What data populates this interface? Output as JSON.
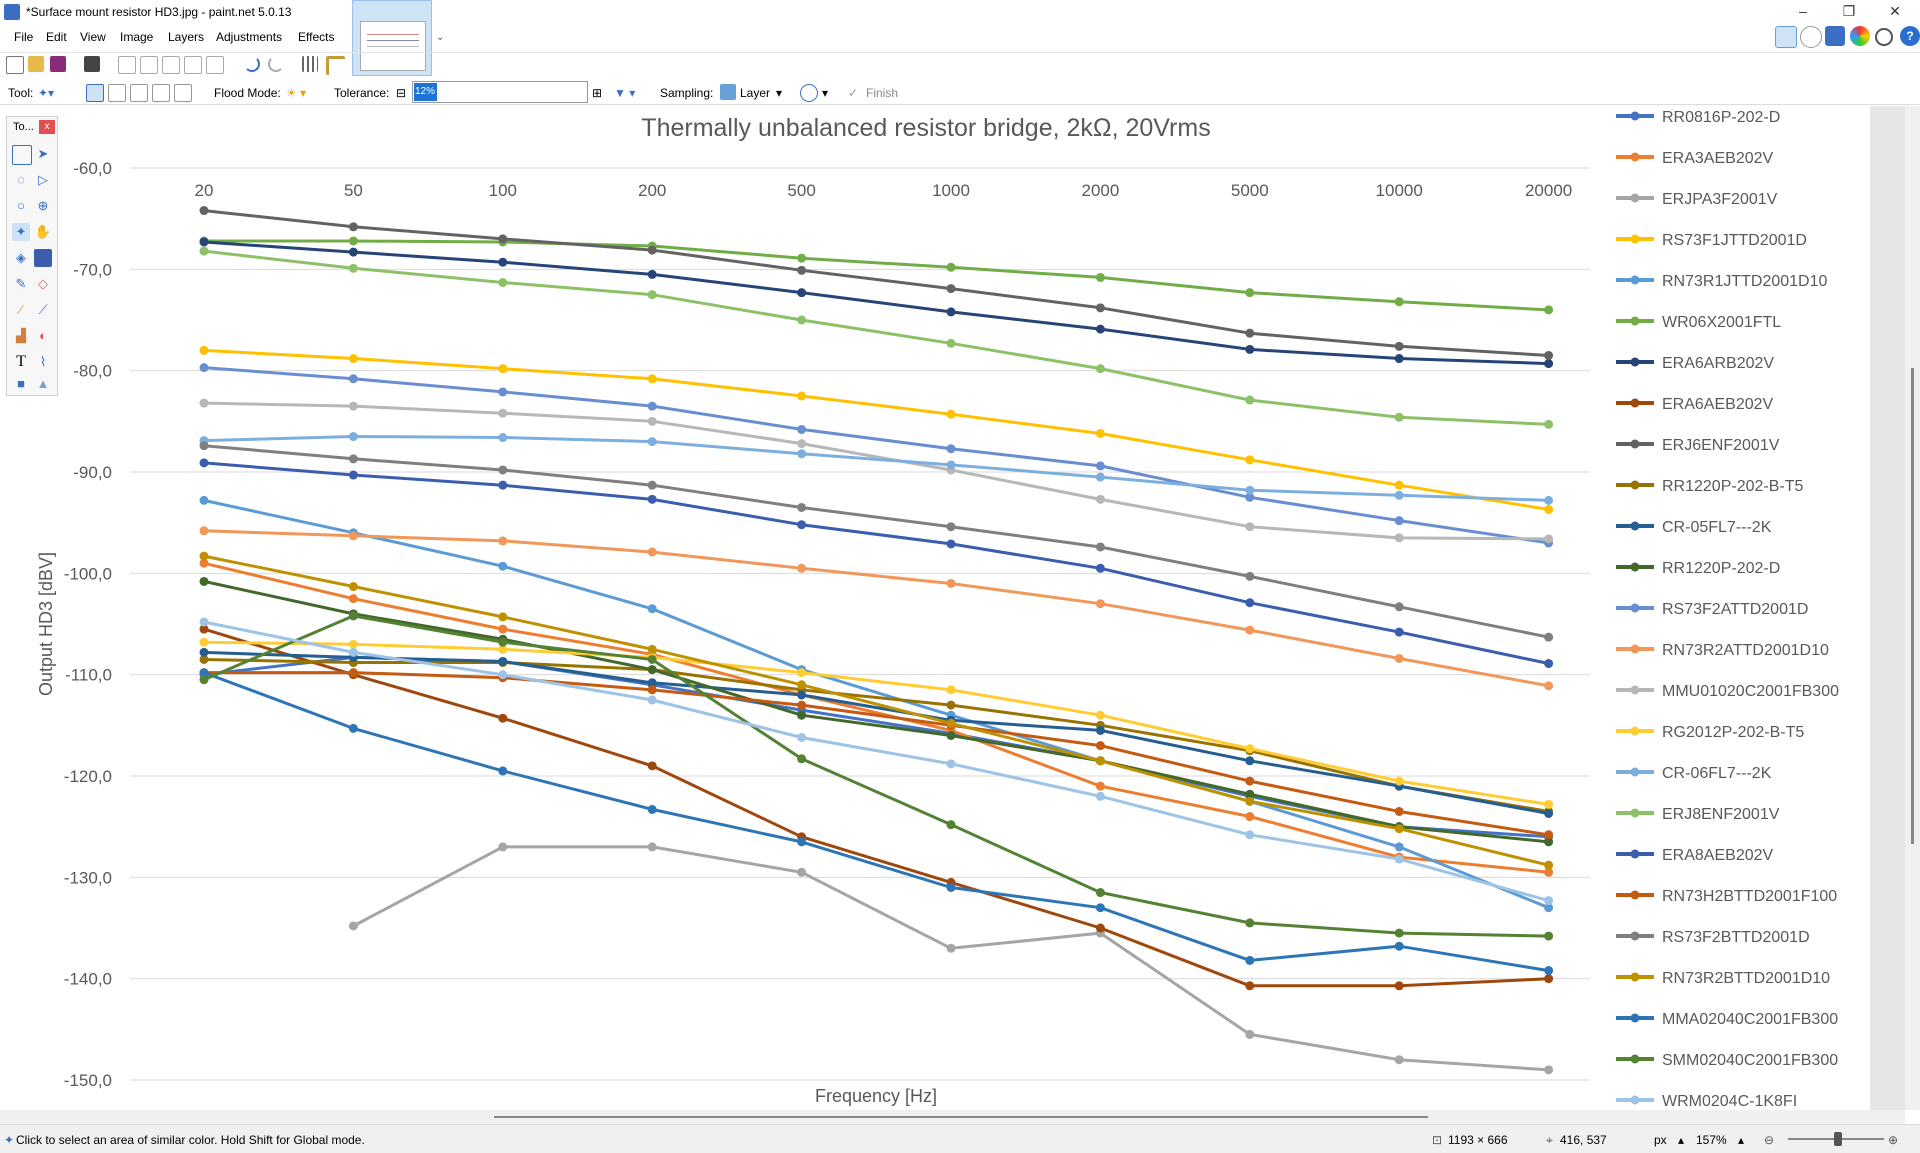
{
  "window": {
    "title": "*Surface mount resistor HD3.jpg - paint.net 5.0.13",
    "minimize": "–",
    "maximize": "❐",
    "close": "✕"
  },
  "menu": [
    "File",
    "Edit",
    "View",
    "Image",
    "Layers",
    "Adjustments",
    "Effects"
  ],
  "toolbar2": {
    "tool_label": "Tool:",
    "flood_label": "Flood Mode:",
    "tolerance_label": "Tolerance:",
    "tolerance_value": "12%",
    "tolerance_percent": 12,
    "sampling_label": "Sampling:",
    "sampling_value": "Layer",
    "finish_label": "Finish"
  },
  "tools_panel": {
    "title": "To...",
    "close": "x"
  },
  "status": {
    "hint": "Click to select an area of similar color. Hold Shift for Global mode.",
    "image_size": "1193 × 666",
    "cursor_pos": "416, 537",
    "unit": "px",
    "zoom": "157%"
  },
  "chart_data": {
    "type": "line",
    "title": "Thermally unbalanced resistor bridge, 2kΩ, 20Vrms",
    "xlabel": "Frequency [Hz]",
    "ylabel": "Output HD3 [dBV]",
    "categories": [
      "20",
      "50",
      "100",
      "200",
      "500",
      "1000",
      "2000",
      "5000",
      "10000",
      "20000"
    ],
    "ylim": [
      -150,
      -60
    ],
    "yticks": [
      "-60,0",
      "-70,0",
      "-80,0",
      "-90,0",
      "-100,0",
      "-110,0",
      "-120,0",
      "-130,0",
      "-140,0",
      "-150,0"
    ],
    "grid": true,
    "legend_position": "right",
    "series": [
      {
        "name": "RR0816P-202-D",
        "color": "#4472c4",
        "values": [
          -110.0,
          -108.3,
          -108.7,
          -111.0,
          -113.5,
          -115.8,
          -118.5,
          -122.0,
          -125.0,
          -126.0
        ]
      },
      {
        "name": "ERA3AEB202V",
        "color": "#ed7d31",
        "values": [
          -99.0,
          -102.5,
          -105.5,
          -108.0,
          -112.0,
          -115.5,
          -121.0,
          -124.0,
          -128.0,
          -129.5
        ]
      },
      {
        "name": "ERJPA3F2001V",
        "color": "#a5a5a5",
        "values": [
          null,
          -134.8,
          -127.0,
          -127.0,
          -129.5,
          -137.0,
          -135.5,
          -145.5,
          -148.0,
          -149.0
        ]
      },
      {
        "name": "RS73F1JTTD2001D",
        "color": "#ffc000",
        "values": [
          -78.0,
          -78.8,
          -79.8,
          -80.8,
          -82.5,
          -84.3,
          -86.2,
          -88.8,
          -91.3,
          -93.7
        ]
      },
      {
        "name": "RN73R1JTTD2001D10",
        "color": "#5b9bd5",
        "values": [
          -92.8,
          -96.0,
          -99.3,
          -103.5,
          -109.5,
          -114.0,
          -118.5,
          -122.5,
          -127.0,
          -133.0
        ]
      },
      {
        "name": "WR06X2001FTL",
        "color": "#70ad47",
        "values": [
          -67.2,
          -67.2,
          -67.3,
          -67.7,
          -68.9,
          -69.8,
          -70.8,
          -72.3,
          -73.2,
          -74.0
        ]
      },
      {
        "name": "ERA6ARB202V",
        "color": "#264478",
        "values": [
          -67.3,
          -68.3,
          -69.3,
          -70.5,
          -72.3,
          -74.2,
          -75.9,
          -77.9,
          -78.8,
          -79.3
        ]
      },
      {
        "name": "ERA6AEB202V",
        "color": "#9e480e",
        "values": [
          -105.5,
          -110.0,
          -114.3,
          -119.0,
          -126.0,
          -130.5,
          -135.0,
          -140.7,
          -140.7,
          -140.0
        ]
      },
      {
        "name": "ERJ6ENF2001V",
        "color": "#636363",
        "values": [
          -64.2,
          -65.8,
          -67.0,
          -68.1,
          -70.1,
          -71.9,
          -73.8,
          -76.3,
          -77.6,
          -78.5
        ]
      },
      {
        "name": "RR1220P-202-B-T5",
        "color": "#997300",
        "values": [
          -108.5,
          -108.8,
          -108.8,
          -109.5,
          -111.5,
          -113.0,
          -115.0,
          -117.5,
          -121.0,
          -123.5
        ]
      },
      {
        "name": "CR-05FL7---2K",
        "color": "#255e91",
        "values": [
          -107.8,
          -108.3,
          -108.7,
          -110.8,
          -112.0,
          -114.5,
          -115.5,
          -118.5,
          -121.0,
          -123.7
        ]
      },
      {
        "name": "RR1220P-202-D",
        "color": "#43682b",
        "values": [
          -100.8,
          -104.0,
          -106.5,
          -109.5,
          -114.0,
          -116.0,
          -118.5,
          -121.8,
          -125.0,
          -126.5
        ]
      },
      {
        "name": "RS73F2ATTD2001D",
        "color": "#698ed0",
        "values": [
          -79.7,
          -80.8,
          -82.1,
          -83.5,
          -85.8,
          -87.7,
          -89.4,
          -92.5,
          -94.8,
          -97.0
        ]
      },
      {
        "name": "RN73R2ATTD2001D10",
        "color": "#f1975a",
        "values": [
          -95.8,
          -96.3,
          -96.8,
          -97.9,
          -99.5,
          -101.0,
          -103.0,
          -105.6,
          -108.4,
          -111.1
        ]
      },
      {
        "name": "MMU01020C2001FB300",
        "color": "#b7b7b7",
        "values": [
          -83.2,
          -83.5,
          -84.2,
          -85.0,
          -87.2,
          -89.8,
          -92.7,
          -95.4,
          -96.5,
          -96.6
        ]
      },
      {
        "name": "RG2012P-202-B-T5",
        "color": "#ffcd33",
        "values": [
          -106.8,
          -107.0,
          -107.5,
          -108.3,
          -109.8,
          -111.5,
          -114.0,
          -117.3,
          -120.5,
          -122.8
        ]
      },
      {
        "name": "CR-06FL7---2K",
        "color": "#7cafdd",
        "values": [
          -86.9,
          -86.5,
          -86.6,
          -87.0,
          -88.2,
          -89.3,
          -90.5,
          -91.8,
          -92.3,
          -92.8
        ]
      },
      {
        "name": "ERJ8ENF2001V",
        "color": "#8cc168",
        "values": [
          -68.2,
          -69.9,
          -71.3,
          -72.5,
          -75.0,
          -77.3,
          -79.8,
          -82.9,
          -84.6,
          -85.3
        ]
      },
      {
        "name": "ERA8AEB202V",
        "color": "#3a5dae",
        "values": [
          -89.1,
          -90.3,
          -91.3,
          -92.7,
          -95.2,
          -97.1,
          -99.5,
          -102.9,
          -105.8,
          -108.9
        ]
      },
      {
        "name": "RN73H2BTTD2001F100",
        "color": "#c55a11",
        "values": [
          -109.8,
          -109.8,
          -110.3,
          -111.5,
          -113.0,
          -115.0,
          -117.0,
          -120.5,
          -123.5,
          -125.8
        ]
      },
      {
        "name": "RS73F2BTTD2001D",
        "color": "#7f7f7f",
        "values": [
          -87.4,
          -88.7,
          -89.8,
          -91.3,
          -93.5,
          -95.4,
          -97.4,
          -100.3,
          -103.3,
          -106.3
        ]
      },
      {
        "name": "RN73R2BTTD2001D10",
        "color": "#bf9000",
        "values": [
          -98.3,
          -101.3,
          -104.3,
          -107.5,
          -111.0,
          -114.8,
          -118.5,
          -122.5,
          -125.2,
          -128.8
        ]
      },
      {
        "name": "MMA02040C2001FB300",
        "color": "#2e75b6",
        "values": [
          -109.8,
          -115.3,
          -119.5,
          -123.3,
          -126.5,
          -131.0,
          -133.0,
          -138.2,
          -136.8,
          -139.2
        ]
      },
      {
        "name": "SMM02040C2001FB300",
        "color": "#548235",
        "values": [
          -110.5,
          -104.2,
          -106.8,
          -108.5,
          -118.3,
          -124.8,
          -131.5,
          -134.5,
          -135.5,
          -135.8
        ]
      },
      {
        "name": "WRM0204C-1K8FI",
        "color": "#9dc3e6",
        "values": [
          -104.8,
          -107.8,
          -110.0,
          -112.5,
          -116.2,
          -118.8,
          -122.0,
          -125.8,
          -128.2,
          -132.3
        ]
      }
    ]
  }
}
